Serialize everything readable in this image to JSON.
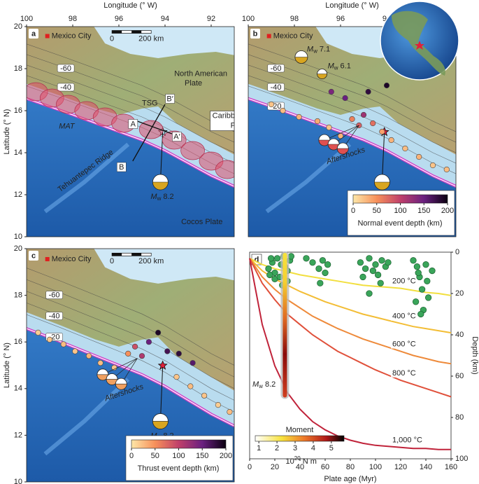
{
  "maps": {
    "longitude_label": "Longitude (° W)",
    "latitude_label": "Latitude (° N)",
    "lonlim": [
      100,
      91
    ],
    "latlim": [
      20,
      10
    ],
    "lon_ticks": [
      100,
      98,
      96,
      94,
      92
    ],
    "lat_ticks": [
      20,
      18,
      16,
      14,
      12,
      10
    ],
    "city": "Mexico City",
    "scale_bar": [
      "0",
      "200 km"
    ],
    "magnitude": {
      "symbol": "M",
      "subscript": "w"
    },
    "mainshock": "8.2",
    "panels": [
      {
        "letter": "a",
        "contours": [
          -60,
          -40
        ],
        "plate_north": [
          "North American",
          "Plate"
        ],
        "plate_east": [
          "Caribbean",
          "Plate"
        ],
        "plate_south": "Cocos Plate",
        "trench": "MAT",
        "ridge": "Tehuantepec Ridge",
        "gap": "TSG",
        "profiles": [
          "A",
          "A′",
          "B",
          "B′"
        ]
      },
      {
        "letter": "b",
        "contours": [
          -60,
          -40,
          -20
        ],
        "other_events": [
          "7.1",
          "6.1"
        ],
        "aftershocks": "Aftershocks",
        "colorbar": {
          "label": "Normal event depth (km)",
          "lim": [
            0,
            200
          ],
          "ticks": [
            0,
            50,
            100,
            150,
            200
          ]
        },
        "events": [
          [
            99,
            16.3,
            20
          ],
          [
            98.5,
            16,
            25
          ],
          [
            97.8,
            15.7,
            30
          ],
          [
            97,
            15.5,
            35
          ],
          [
            96.5,
            15.2,
            20
          ],
          [
            96,
            14.8,
            30
          ],
          [
            95.5,
            15.6,
            60
          ],
          [
            95.2,
            15.3,
            80
          ],
          [
            95,
            15.8,
            120
          ],
          [
            94.6,
            15.4,
            70
          ],
          [
            94.2,
            15,
            40
          ],
          [
            93.8,
            14.6,
            30
          ],
          [
            93.2,
            14.2,
            25
          ],
          [
            92.6,
            13.8,
            30
          ],
          [
            92,
            13.4,
            20
          ],
          [
            91.4,
            13.2,
            25
          ],
          [
            95.8,
            16.6,
            150
          ],
          [
            94.8,
            16.9,
            180
          ],
          [
            94,
            17.2,
            190
          ],
          [
            96.4,
            16.9,
            140
          ]
        ]
      },
      {
        "letter": "c",
        "contours": [
          -60,
          -40,
          -20
        ],
        "aftershocks": "Aftershocks",
        "colorbar": {
          "label": "Thrust event depth (km)",
          "lim": [
            0,
            200
          ],
          "ticks": [
            0,
            50,
            100,
            150,
            200
          ]
        },
        "events": [
          [
            99.5,
            16.4,
            15
          ],
          [
            99,
            16.1,
            20
          ],
          [
            98.4,
            15.9,
            25
          ],
          [
            97.9,
            15.6,
            20
          ],
          [
            97.3,
            15.4,
            30
          ],
          [
            96.8,
            15.1,
            25
          ],
          [
            96.2,
            14.9,
            20
          ],
          [
            95.6,
            15.5,
            50
          ],
          [
            95.3,
            15.8,
            90
          ],
          [
            95,
            15.4,
            110
          ],
          [
            94.7,
            16.0,
            150
          ],
          [
            94.3,
            16.4,
            190
          ],
          [
            93.9,
            15.6,
            170
          ],
          [
            93.5,
            14.5,
            20
          ],
          [
            92.9,
            14.1,
            25
          ],
          [
            92.3,
            13.7,
            20
          ],
          [
            91.7,
            13.3,
            15
          ],
          [
            91.2,
            13.0,
            25
          ],
          [
            93.4,
            15.5,
            180
          ],
          [
            92.8,
            15.1,
            160
          ]
        ]
      }
    ]
  },
  "chart_data": {
    "type": "line",
    "letter": "d",
    "x_label": "Plate age (Myr)",
    "y_label": "Depth (km)",
    "x": [
      0,
      10,
      20,
      30,
      40,
      50,
      60,
      70,
      80,
      90,
      100,
      110,
      120,
      130,
      140,
      150,
      160
    ],
    "series": [
      {
        "name": "200 °C",
        "color": "#f2df3f",
        "values": [
          3,
          6,
          8,
          9.5,
          11,
          12,
          13,
          14,
          15,
          16,
          16.5,
          17,
          17.5,
          18.5,
          19.5,
          20,
          21
        ]
      },
      {
        "name": "400 °C",
        "color": "#f3bd35",
        "values": [
          3,
          9,
          13,
          16,
          19,
          21.5,
          24,
          26,
          28,
          30,
          31.5,
          33,
          34.5,
          36,
          37,
          38,
          39
        ]
      },
      {
        "name": "600 °C",
        "color": "#ee8a3a",
        "values": [
          3,
          12,
          18,
          23,
          27,
          31,
          34,
          37,
          39.5,
          42,
          44,
          46,
          48,
          50,
          51.5,
          53,
          54
        ]
      },
      {
        "name": "800 °C",
        "color": "#e0503a",
        "values": [
          3,
          15,
          23,
          30,
          35,
          40,
          44,
          48,
          51,
          54,
          57,
          59.5,
          62,
          64,
          66,
          68,
          70
        ]
      },
      {
        "name": "1,000 °C",
        "color": "#c0233a",
        "values": [
          3,
          35,
          55,
          68,
          76,
          82,
          86,
          89,
          91,
          92.5,
          93.5,
          94,
          94.5,
          95,
          95,
          95.5,
          95.5
        ]
      }
    ],
    "scatter": {
      "color": "#3aa55a",
      "x": [
        15,
        18,
        20,
        22,
        25,
        27,
        30,
        32,
        20,
        24,
        28,
        30,
        17,
        26,
        33,
        16,
        45,
        50,
        55,
        58,
        60,
        62,
        56,
        88,
        92,
        95,
        98,
        100,
        102,
        105,
        108,
        110,
        95,
        90,
        104,
        130,
        133,
        135,
        137,
        140,
        142,
        145,
        138,
        136,
        132,
        141,
        134
      ],
      "y": [
        8,
        5,
        10,
        3,
        6,
        2,
        9,
        4,
        13,
        12,
        7,
        14,
        3,
        16,
        2,
        11,
        3,
        5,
        8,
        4,
        10,
        6,
        15,
        5,
        8,
        3,
        9,
        6,
        11,
        4,
        7,
        5,
        20,
        12,
        15,
        4,
        7,
        12,
        18,
        6,
        22,
        9,
        28,
        30,
        24,
        14,
        10
      ]
    },
    "annotation": {
      "symbol": "M",
      "subscript": "w",
      "value": "8.2"
    },
    "xlim": [
      0,
      160
    ],
    "xticks": [
      0,
      20,
      40,
      60,
      80,
      100,
      120,
      140,
      160
    ],
    "ylim": [
      0,
      100
    ],
    "yticks": [
      0,
      20,
      40,
      60,
      80,
      100
    ],
    "y_inverted": true,
    "colorbar": {
      "title": "Moment",
      "lim": [
        0.8,
        5.7
      ],
      "ticks": [
        1,
        2,
        3,
        4,
        5
      ],
      "unit": {
        "base": "10",
        "exponent": "20",
        "unit": " N m"
      }
    }
  }
}
